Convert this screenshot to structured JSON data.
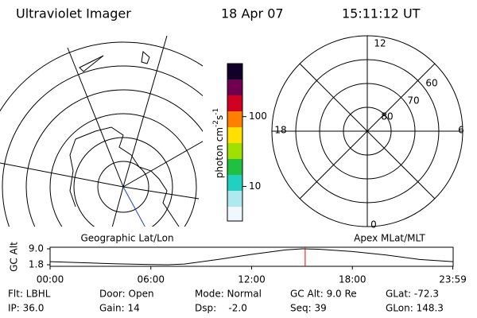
{
  "header": {
    "title": "Ultraviolet Imager",
    "date": "18 Apr 07",
    "time": "15:11:12 UT"
  },
  "colorbar": {
    "unit1": "photon cm",
    "exp1": "-2",
    "unit2": "s",
    "exp2": "-1",
    "ylim": [
      3.2,
      575
    ],
    "log": true,
    "yticks": [
      10,
      100
    ]
  },
  "polar": {
    "mlt_labels": [
      "12",
      "6",
      "18",
      "0"
    ],
    "mlat_labels": [
      "80",
      "70",
      "60"
    ]
  },
  "panel_labels": [
    "Geographic Lat/Lon",
    "Apex MLat/MLT"
  ],
  "chart_data": {
    "type": "line",
    "y_label": "GC Alt",
    "xlim": [
      0,
      24
    ],
    "xticks": [
      {
        "value": 0,
        "label": "00:00"
      },
      {
        "value": 6,
        "label": "06:00"
      },
      {
        "value": 12,
        "label": "12:00"
      },
      {
        "value": 18,
        "label": "18:00"
      },
      {
        "value": 23.98,
        "label": "23:59"
      }
    ],
    "ylim": [
      1.8,
      9.0
    ],
    "yticks": [
      {
        "value": 9.0,
        "label": "9.0"
      },
      1.8
    ],
    "x": [
      0,
      2,
      4,
      6,
      7,
      8,
      10,
      12,
      14,
      15,
      16,
      18,
      20,
      22,
      23.98
    ],
    "values": [
      3.2,
      2.7,
      2.2,
      1.9,
      1.8,
      2.1,
      4.2,
      6.5,
      8.5,
      9.0,
      8.8,
      7.8,
      6.2,
      4.2,
      3.2
    ],
    "color": "#000000",
    "marker_x": 15.19,
    "marker_color": "#ff0000"
  },
  "status": {
    "rows": [
      [
        "Flt: LBHL",
        "Door: Open",
        "Mode: Normal",
        "GC Alt: 9.0 Re",
        "GLat: -72.3"
      ],
      [
        "IP: 36.0",
        "Gain: 14",
        "Dsp:    -2.0",
        "Seq: 39",
        "GLon: 148.3"
      ]
    ]
  }
}
